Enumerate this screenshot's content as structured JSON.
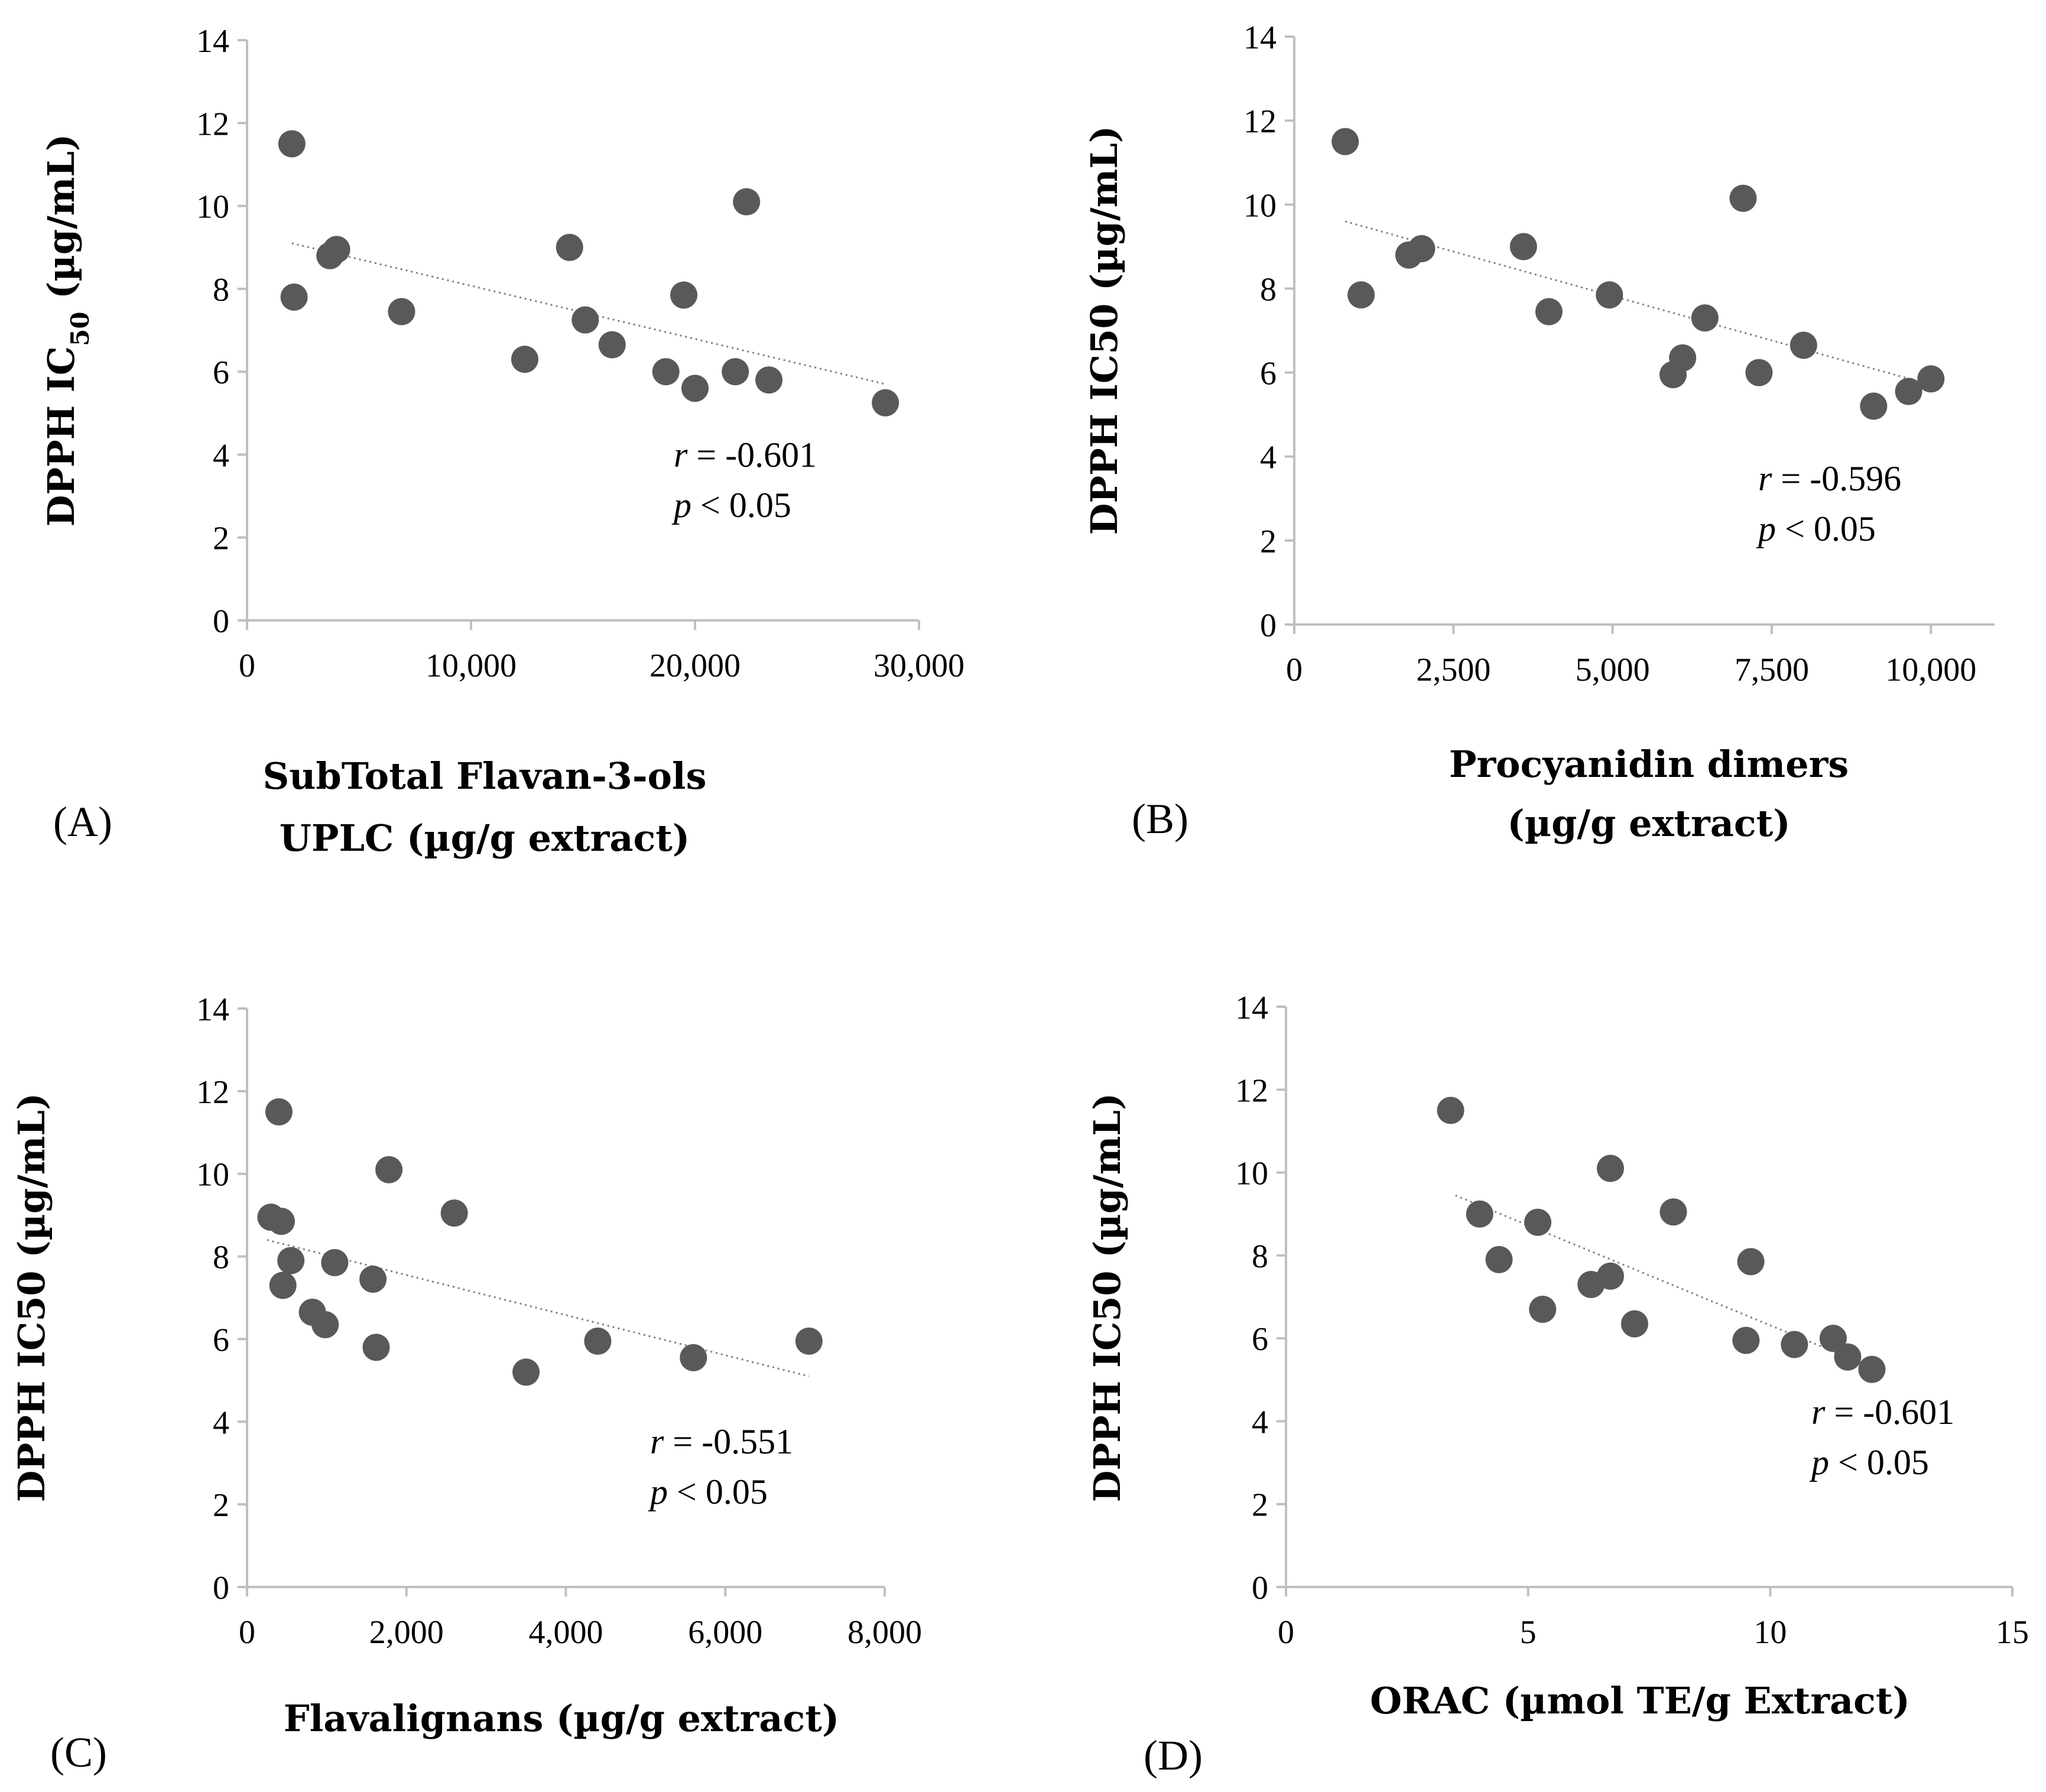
{
  "colors": {
    "point": "#595959",
    "axis": "#bfbfbf",
    "trend": "#7f7f7f",
    "text": "#000000"
  },
  "chart_data": [
    {
      "type": "scatter",
      "panel_label": "(A)",
      "xlabel_lines": [
        "SubTotal Flavan-3-ols",
        "UPLC (µg/g extract)"
      ],
      "ylabel": "DPPH IC50 (µg/mL)",
      "ylabel_main": "DPPH IC",
      "ylabel_sub": "50",
      "ylabel_tail": " (µg/mL)",
      "xlim": [
        0,
        30000
      ],
      "ylim": [
        0,
        14
      ],
      "xticks": [
        0,
        10000,
        20000,
        30000
      ],
      "xtick_labels": [
        "0",
        "10,000",
        "20,000",
        "30,000"
      ],
      "yticks": [
        0,
        2,
        4,
        6,
        8,
        10,
        12,
        14
      ],
      "ytick_labels": [
        "0",
        "2",
        "4",
        "6",
        "8",
        "10",
        "12",
        "14"
      ],
      "points": [
        [
          2000,
          11.5
        ],
        [
          2100,
          7.8
        ],
        [
          3700,
          8.8
        ],
        [
          4000,
          8.95
        ],
        [
          6900,
          7.45
        ],
        [
          12400,
          6.3
        ],
        [
          14400,
          9.0
        ],
        [
          15100,
          7.25
        ],
        [
          16300,
          6.65
        ],
        [
          18700,
          6.0
        ],
        [
          19500,
          7.85
        ],
        [
          20000,
          5.6
        ],
        [
          21800,
          6.0
        ],
        [
          22300,
          10.1
        ],
        [
          23300,
          5.8
        ],
        [
          28500,
          5.25
        ]
      ],
      "trendline": {
        "x": [
          2000,
          28500
        ],
        "y": [
          9.1,
          5.7
        ]
      },
      "annotation": {
        "r_label": "r",
        "r_text": " = -0.601",
        "p_label": "p",
        "p_text": " < 0.05"
      }
    },
    {
      "type": "scatter",
      "panel_label": "(B)",
      "xlabel_lines": [
        "Procyanidin dimers",
        "(µg/g extract)"
      ],
      "ylabel": "DPPH IC50 (µg/mL)",
      "xlim": [
        0,
        11000
      ],
      "ylim": [
        0,
        14
      ],
      "xticks": [
        0,
        2500,
        5000,
        7500,
        10000
      ],
      "xtick_labels": [
        "0",
        "2,500",
        "5,000",
        "7,500",
        "10,000"
      ],
      "yticks": [
        0,
        2,
        4,
        6,
        8,
        10,
        12,
        14
      ],
      "ytick_labels": [
        "0",
        "2",
        "4",
        "6",
        "8",
        "10",
        "12",
        "14"
      ],
      "points": [
        [
          800,
          11.5
        ],
        [
          1050,
          7.85
        ],
        [
          1800,
          8.8
        ],
        [
          2000,
          8.95
        ],
        [
          3600,
          9.0
        ],
        [
          4000,
          7.45
        ],
        [
          4950,
          7.85
        ],
        [
          5950,
          5.95
        ],
        [
          6100,
          6.35
        ],
        [
          6450,
          7.3
        ],
        [
          7050,
          10.15
        ],
        [
          7300,
          6.0
        ],
        [
          8000,
          6.65
        ],
        [
          9100,
          5.2
        ],
        [
          9650,
          5.55
        ],
        [
          10000,
          5.85
        ]
      ],
      "trendline": {
        "x": [
          800,
          9900
        ],
        "y": [
          9.6,
          5.75
        ]
      },
      "annotation": {
        "r_label": "r",
        "r_text": " = -0.596",
        "p_label": "p",
        "p_text": " < 0.05"
      }
    },
    {
      "type": "scatter",
      "panel_label": "(C)",
      "xlabel_lines": [
        "Flavalignans (µg/g extract)"
      ],
      "ylabel": "DPPH IC50 (µg/mL)",
      "xlim": [
        0,
        8000
      ],
      "ylim": [
        0,
        14
      ],
      "xticks": [
        0,
        2000,
        4000,
        6000,
        8000
      ],
      "xtick_labels": [
        "0",
        "2,000",
        "4,000",
        "6,000",
        "8,000"
      ],
      "yticks": [
        0,
        2,
        4,
        6,
        8,
        10,
        12,
        14
      ],
      "ytick_labels": [
        "0",
        "2",
        "4",
        "6",
        "8",
        "10",
        "12",
        "14"
      ],
      "points": [
        [
          300,
          8.95
        ],
        [
          400,
          11.5
        ],
        [
          430,
          8.85
        ],
        [
          450,
          7.3
        ],
        [
          550,
          7.9
        ],
        [
          820,
          6.65
        ],
        [
          980,
          6.35
        ],
        [
          1100,
          7.85
        ],
        [
          1580,
          7.45
        ],
        [
          1620,
          5.8
        ],
        [
          1780,
          10.1
        ],
        [
          2600,
          9.05
        ],
        [
          3500,
          5.2
        ],
        [
          4400,
          5.95
        ],
        [
          5600,
          5.55
        ],
        [
          7050,
          5.95
        ]
      ],
      "trendline": {
        "x": [
          250,
          7050
        ],
        "y": [
          8.4,
          5.1
        ]
      },
      "annotation": {
        "r_label": "r",
        "r_text": " = -0.551",
        "p_label": "p",
        "p_text": " < 0.05"
      }
    },
    {
      "type": "scatter",
      "panel_label": "(D)",
      "xlabel_lines": [
        "ORAC (µmol TE/g Extract)"
      ],
      "ylabel": "DPPH IC50 (µg/mL)",
      "xlim": [
        0,
        15
      ],
      "ylim": [
        0,
        14
      ],
      "xticks": [
        0,
        5,
        10,
        15
      ],
      "xtick_labels": [
        "0",
        "5",
        "10",
        "15"
      ],
      "yticks": [
        0,
        2,
        4,
        6,
        8,
        10,
        12,
        14
      ],
      "ytick_labels": [
        "0",
        "2",
        "4",
        "6",
        "8",
        "10",
        "12",
        "14"
      ],
      "points": [
        [
          3.4,
          11.5
        ],
        [
          4.0,
          9.0
        ],
        [
          4.4,
          7.9
        ],
        [
          5.2,
          8.8
        ],
        [
          5.3,
          6.7
        ],
        [
          6.3,
          7.3
        ],
        [
          6.7,
          7.5
        ],
        [
          6.7,
          10.1
        ],
        [
          7.2,
          6.35
        ],
        [
          8.0,
          9.05
        ],
        [
          9.5,
          5.95
        ],
        [
          9.6,
          7.85
        ],
        [
          10.5,
          5.85
        ],
        [
          11.3,
          6.0
        ],
        [
          11.6,
          5.55
        ],
        [
          12.1,
          5.25
        ]
      ],
      "trendline": {
        "x": [
          3.5,
          12.1
        ],
        "y": [
          9.45,
          5.3
        ]
      },
      "annotation": {
        "r_label": "r",
        "r_text": " = -0.601",
        "p_label": "p",
        "p_text": " < 0.05"
      }
    }
  ]
}
